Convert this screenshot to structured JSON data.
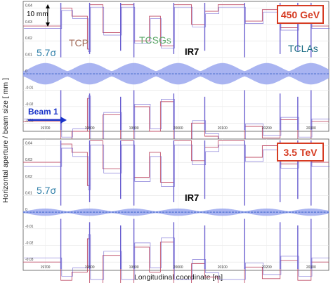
{
  "figure": {
    "ylabel": "Horizontal aperture / beam size [ mm ]",
    "xlabel": "Longitudinal coordinate [m]"
  },
  "colors": {
    "envelope": "#9aa7ee",
    "orbit": "#4d6fd0",
    "aperture_red": "#c0506a",
    "aperture_blue": "#6a5fd0",
    "badge": "#d63b22",
    "tcp": "#a26a58",
    "tcsg": "#5faa6c",
    "tcla": "#1f6f86",
    "sigma": "#2f7fa8",
    "beam_arrow": "#1a33c8"
  },
  "chart_data": [
    {
      "type": "line",
      "panel": "top",
      "energy_badge": "450 GeV",
      "scale_bar": "10 mm",
      "labels": {
        "tcp": "TCP",
        "tcsg": "TCSGs",
        "ir": "IR7",
        "tcla": "TCLAs",
        "sigma": "5.7σ",
        "beam": "Beam 1"
      },
      "x_ticks": [
        "19700",
        "19800",
        "19900",
        "20000",
        "20100",
        "20200",
        "20300"
      ],
      "y_ticks": [
        "0.04",
        "0.03",
        "0.02",
        "0.01",
        "0",
        "-0.01",
        "-0.02",
        "-0.03"
      ],
      "xlim": [
        19650,
        20340
      ],
      "ylim": [
        -0.035,
        0.044
      ],
      "envelope_halfwidth": 0.0065,
      "envelope_shape": "sinusoidal, period ~100 m",
      "grid": true
    },
    {
      "type": "line",
      "panel": "bottom",
      "energy_badge": "3.5 TeV",
      "labels": {
        "sigma": "5.7σ",
        "ir": "IR7"
      },
      "x_ticks": [
        "19700",
        "19800",
        "19900",
        "20000",
        "20100",
        "20200",
        "20300"
      ],
      "y_ticks": [
        "0.04",
        "0.03",
        "0.02",
        "0.01",
        "0",
        "-0.01",
        "-0.02",
        "-0.03"
      ],
      "xlim": [
        19650,
        20340
      ],
      "ylim": [
        -0.035,
        0.044
      ],
      "envelope_halfwidth": 0.0022,
      "envelope_shape": "sinusoidal, period ~100 m",
      "grid": true
    }
  ]
}
